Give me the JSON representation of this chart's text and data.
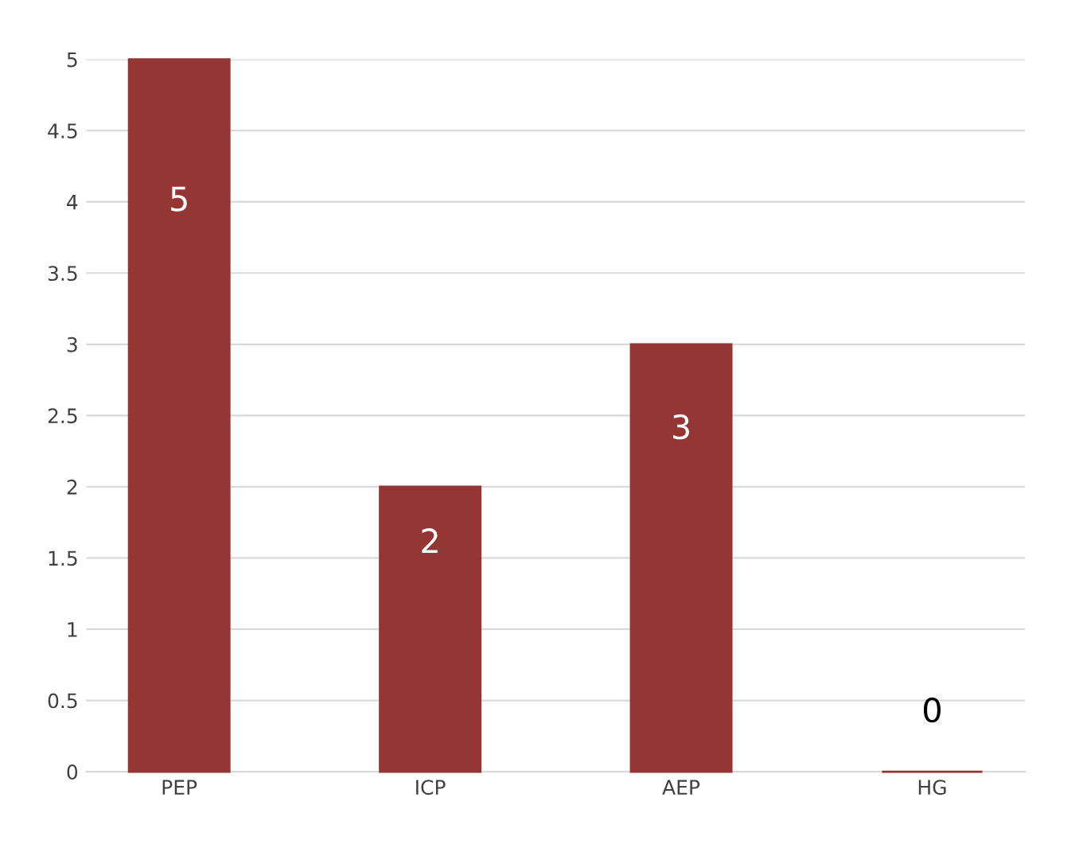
{
  "chart_data": {
    "type": "bar",
    "categories": [
      "PEP",
      "ICP",
      "AEP",
      "HG"
    ],
    "values": [
      5,
      2,
      3,
      0
    ],
    "color": "#943634",
    "ylim": [
      0,
      5
    ],
    "yticks": [
      0,
      0.5,
      1,
      1.5,
      2,
      2.5,
      3,
      3.5,
      4,
      4.5,
      5
    ],
    "grid": "y",
    "data_labels": true
  }
}
